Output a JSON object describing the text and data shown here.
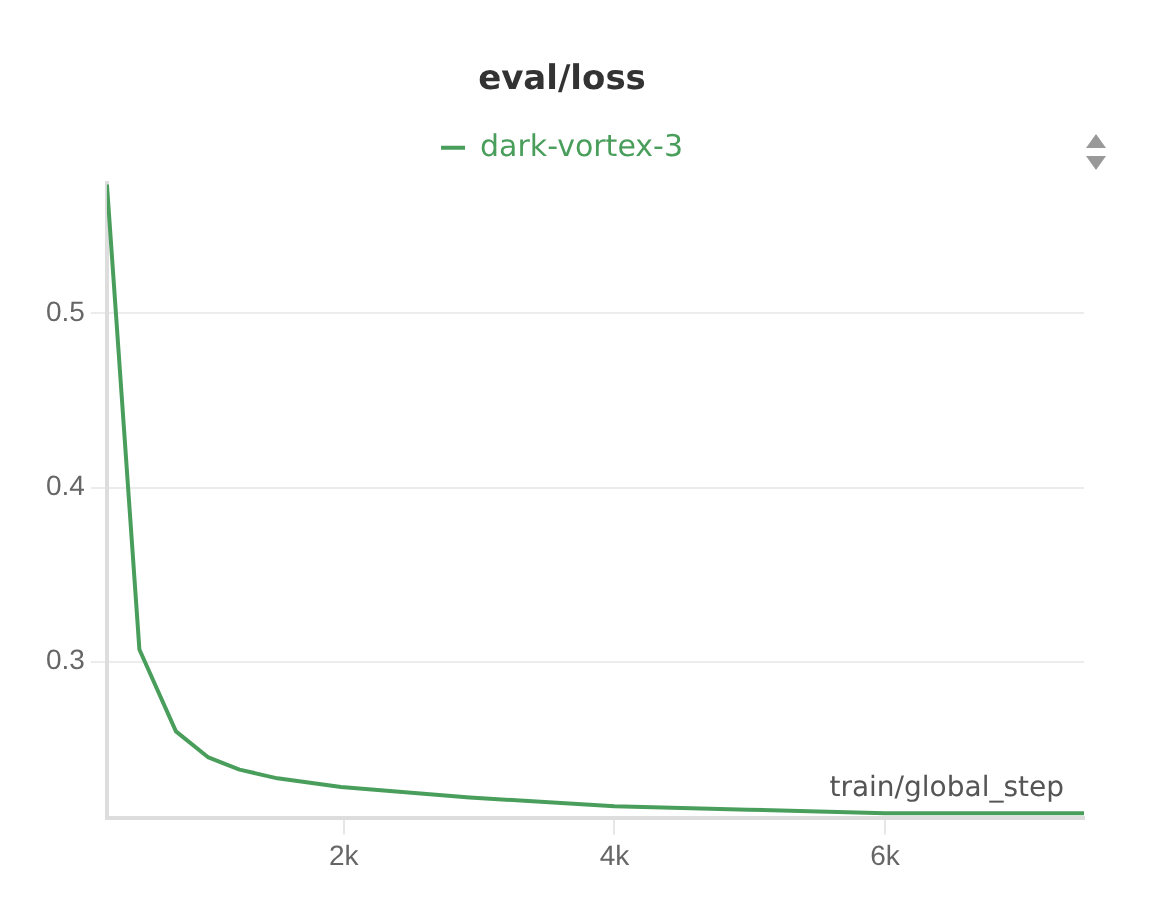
{
  "chart_data": {
    "type": "line",
    "title": "eval/loss",
    "xlabel": "train/global_step",
    "x": [
      250,
      490,
      760,
      1000,
      1230,
      1510,
      1980,
      2930,
      4000,
      4990,
      6000,
      7470
    ],
    "series": [
      {
        "name": "dark-vortex-3",
        "color": "#4a9e5c",
        "values": [
          0.574,
          0.307,
          0.26,
          0.245,
          0.238,
          0.233,
          0.228,
          0.222,
          0.217,
          0.215,
          0.213,
          0.213
        ]
      }
    ],
    "xlim": [
      250,
      7470
    ],
    "xticks": [
      {
        "value": 2000,
        "label": "2k"
      },
      {
        "value": 4000,
        "label": "4k"
      },
      {
        "value": 6000,
        "label": "6k"
      }
    ],
    "ylim": [
      0.21,
      0.575
    ],
    "yticks": [
      0.3,
      0.4,
      0.5
    ],
    "grid": "y",
    "legend": "top",
    "line_style": "solid",
    "marker": "none"
  }
}
